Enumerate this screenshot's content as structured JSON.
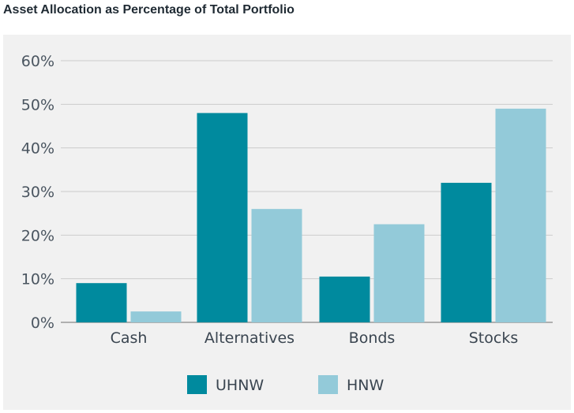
{
  "title": "Asset Allocation as Percentage of Total Portfolio",
  "colors": {
    "uhnw": "#008a9e",
    "hnw": "#93cad9",
    "panel_bg": "#f1f1f1",
    "grid": "#cccccc",
    "axis": "#999999"
  },
  "chart_data": {
    "type": "bar",
    "title": "Asset Allocation as Percentage of Total Portfolio",
    "xlabel": "",
    "ylabel": "",
    "categories": [
      "Cash",
      "Alternatives",
      "Bonds",
      "Stocks"
    ],
    "series": [
      {
        "name": "UHNW",
        "values": [
          9,
          48,
          10.5,
          32
        ]
      },
      {
        "name": "HNW",
        "values": [
          2.5,
          26,
          22.5,
          49
        ]
      }
    ],
    "ylim": [
      0,
      60
    ],
    "yticks": [
      "0%",
      "10%",
      "20%",
      "30%",
      "40%",
      "50%",
      "60%"
    ],
    "grid": true,
    "legend_position": "bottom-center"
  }
}
